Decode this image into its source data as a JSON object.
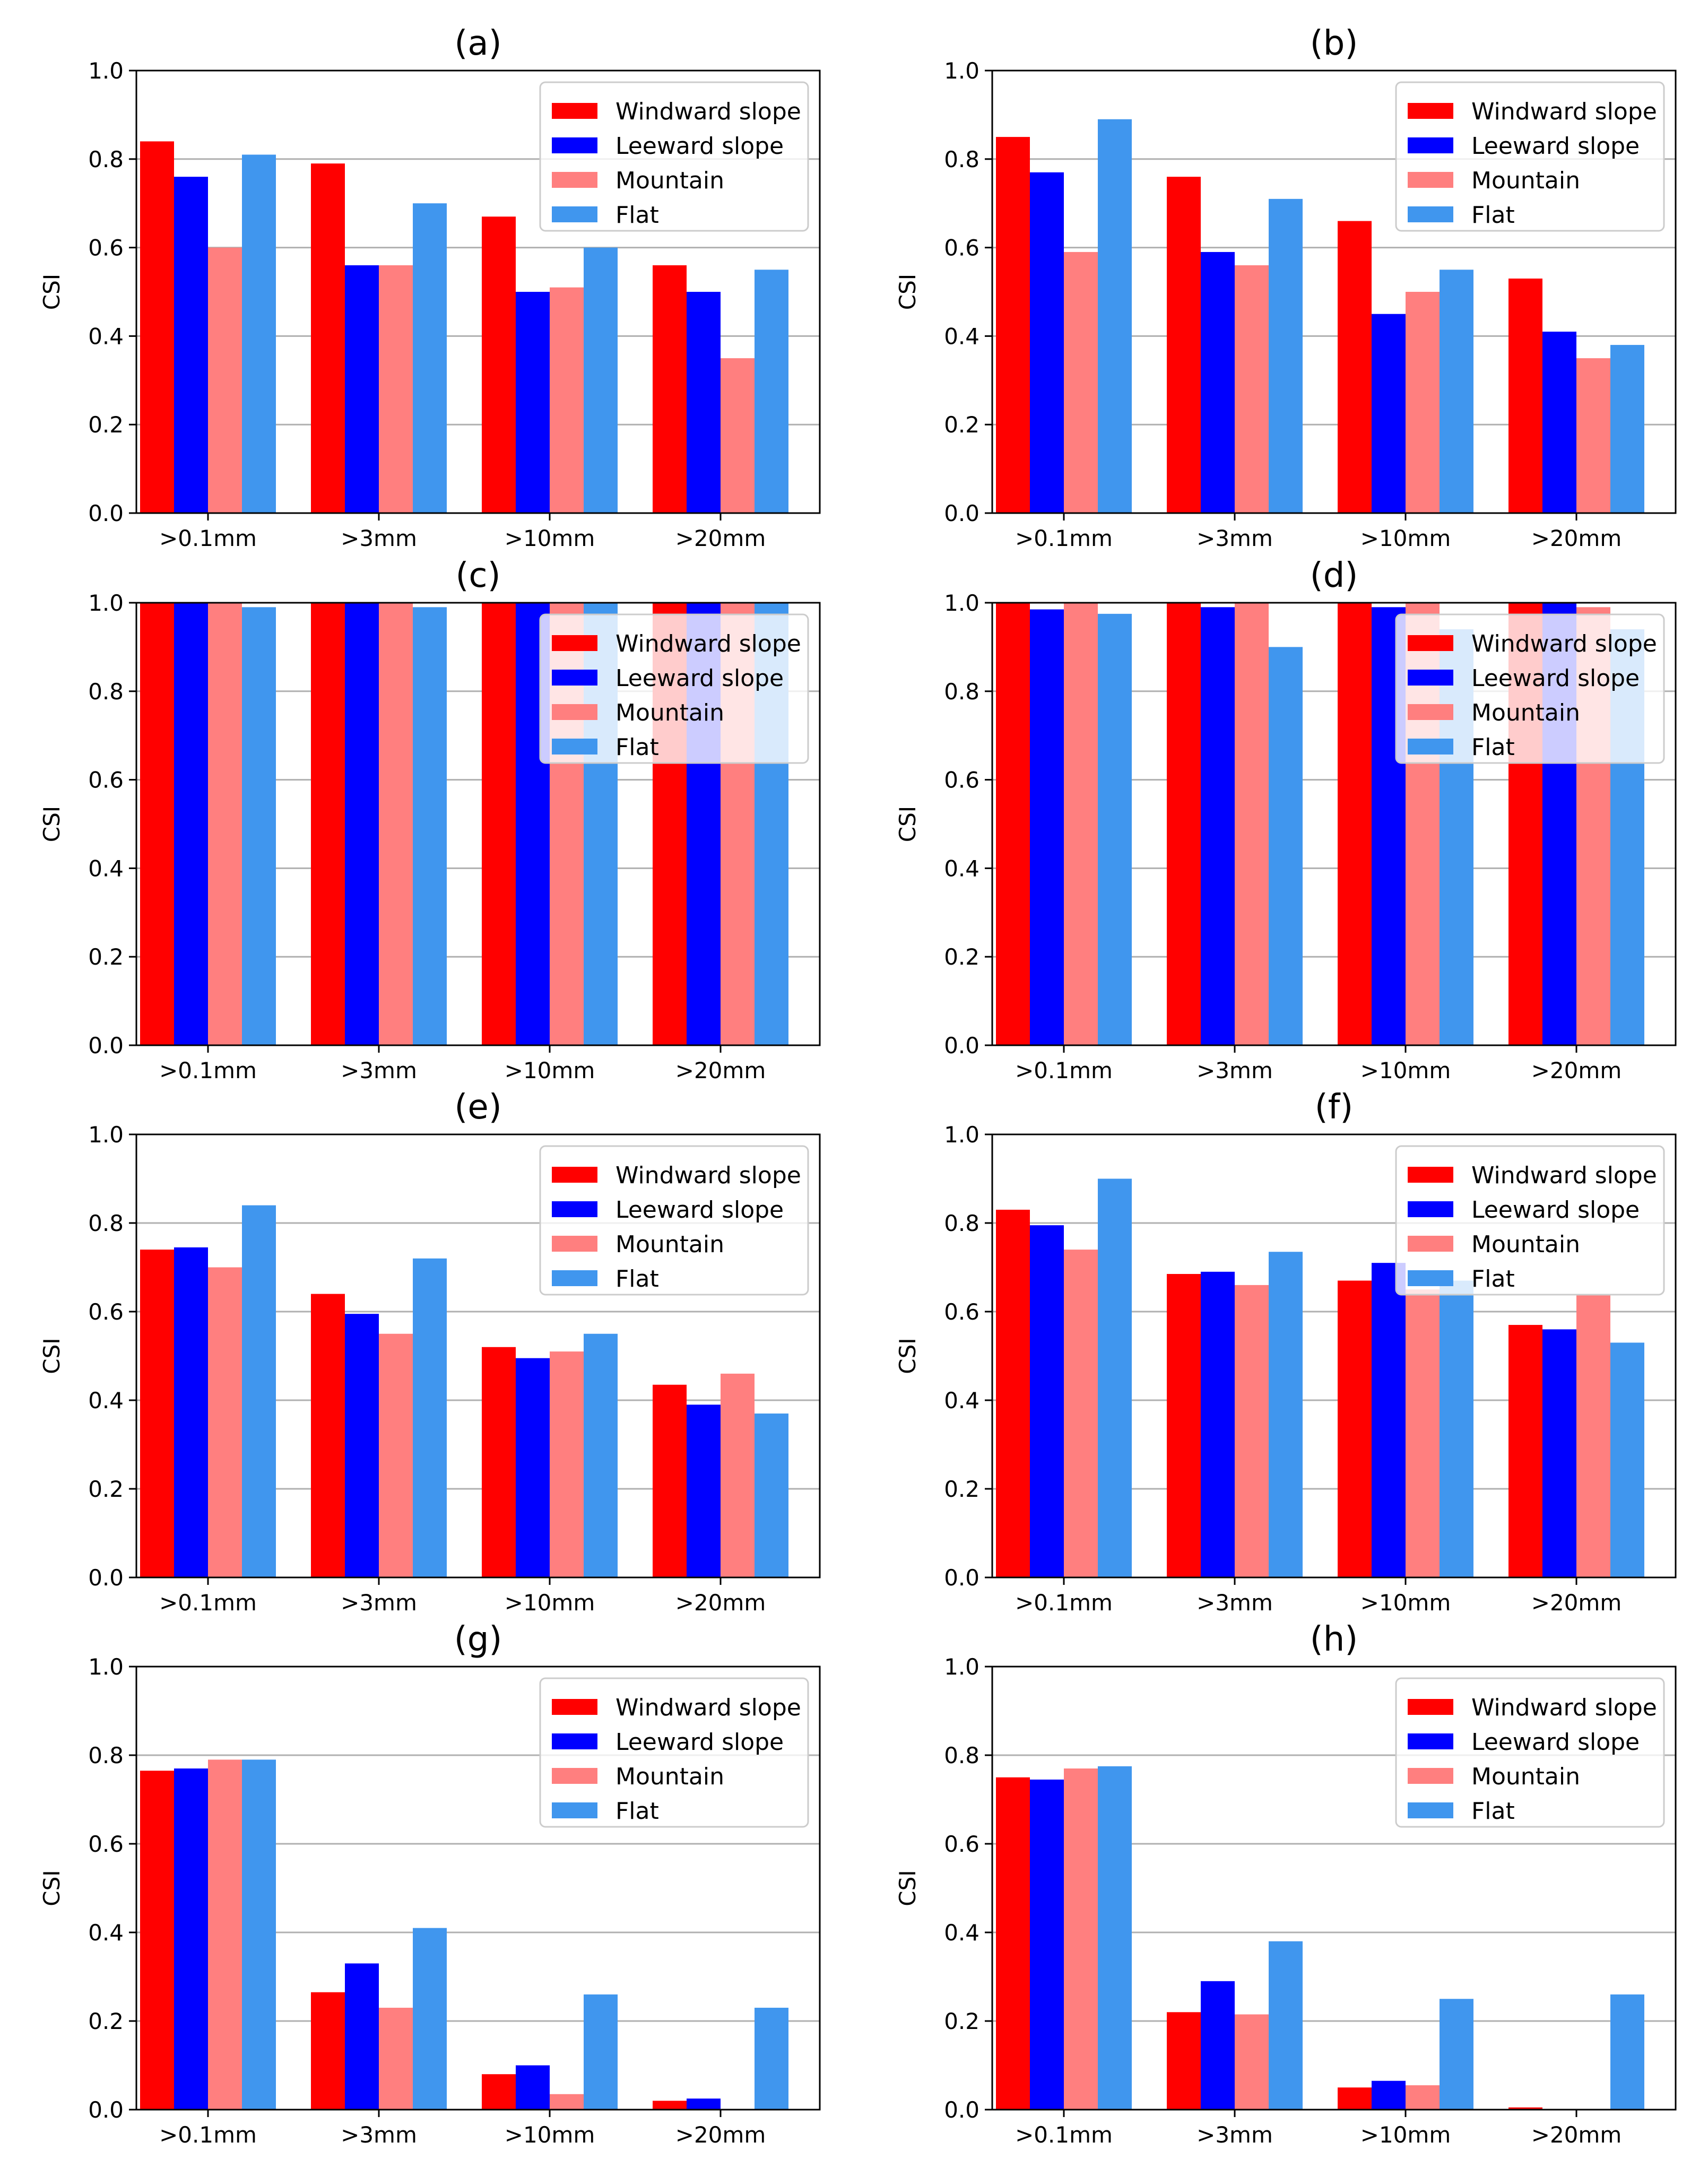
{
  "colors": {
    "Windward slope": "#ff0000",
    "Leeward slope": "#0000ff",
    "Mountain": "#ff7f7f",
    "Flat": "#4096ee"
  },
  "chart_data": [
    {
      "type": "bar",
      "title": "(a)",
      "ylabel": "CSI",
      "ylim": [
        0,
        1
      ],
      "yticks": [
        "0.0",
        "0.2",
        "0.4",
        "0.6",
        "0.8",
        "1.0"
      ],
      "categories": [
        ">0.1mm",
        ">3mm",
        ">10mm",
        ">20mm"
      ],
      "legend": "top-right",
      "grid": "y",
      "series": [
        {
          "name": "Windward slope",
          "values": [
            0.84,
            0.79,
            0.67,
            0.56
          ]
        },
        {
          "name": "Leeward slope",
          "values": [
            0.76,
            0.56,
            0.5,
            0.5
          ]
        },
        {
          "name": "Mountain",
          "values": [
            0.6,
            0.56,
            0.51,
            0.35
          ]
        },
        {
          "name": "Flat",
          "values": [
            0.81,
            0.7,
            0.6,
            0.55
          ]
        }
      ]
    },
    {
      "type": "bar",
      "title": "(b)",
      "ylabel": "CSI",
      "ylim": [
        0,
        1
      ],
      "yticks": [
        "0.0",
        "0.2",
        "0.4",
        "0.6",
        "0.8",
        "1.0"
      ],
      "categories": [
        ">0.1mm",
        ">3mm",
        ">10mm",
        ">20mm"
      ],
      "legend": "top-right",
      "grid": "y",
      "series": [
        {
          "name": "Windward slope",
          "values": [
            0.85,
            0.76,
            0.66,
            0.53
          ]
        },
        {
          "name": "Leeward slope",
          "values": [
            0.77,
            0.59,
            0.45,
            0.41
          ]
        },
        {
          "name": "Mountain",
          "values": [
            0.59,
            0.56,
            0.5,
            0.35
          ]
        },
        {
          "name": "Flat",
          "values": [
            0.89,
            0.71,
            0.55,
            0.38
          ]
        }
      ]
    },
    {
      "type": "bar",
      "title": "(c)",
      "ylabel": "CSI",
      "ylim": [
        0,
        1
      ],
      "yticks": [
        "0.0",
        "0.2",
        "0.4",
        "0.6",
        "0.8",
        "1.0"
      ],
      "categories": [
        ">0.1mm",
        ">3mm",
        ">10mm",
        ">20mm"
      ],
      "legend": "top-right",
      "grid": "y",
      "series": [
        {
          "name": "Windward slope",
          "values": [
            1.0,
            1.0,
            1.0,
            1.0
          ]
        },
        {
          "name": "Leeward slope",
          "values": [
            1.0,
            1.0,
            1.0,
            1.0
          ]
        },
        {
          "name": "Mountain",
          "values": [
            1.0,
            1.0,
            1.0,
            1.0
          ]
        },
        {
          "name": "Flat",
          "values": [
            0.99,
            0.99,
            1.0,
            1.0
          ]
        }
      ]
    },
    {
      "type": "bar",
      "title": "(d)",
      "ylabel": "CSI",
      "ylim": [
        0,
        1
      ],
      "yticks": [
        "0.0",
        "0.2",
        "0.4",
        "0.6",
        "0.8",
        "1.0"
      ],
      "categories": [
        ">0.1mm",
        ">3mm",
        ">10mm",
        ">20mm"
      ],
      "legend": "top-right",
      "grid": "y",
      "series": [
        {
          "name": "Windward slope",
          "values": [
            1.0,
            1.0,
            1.0,
            1.0
          ]
        },
        {
          "name": "Leeward slope",
          "values": [
            0.985,
            0.99,
            0.99,
            1.0
          ]
        },
        {
          "name": "Mountain",
          "values": [
            1.0,
            1.0,
            1.0,
            0.99
          ]
        },
        {
          "name": "Flat",
          "values": [
            0.975,
            0.9,
            0.94,
            0.94
          ]
        }
      ]
    },
    {
      "type": "bar",
      "title": "(e)",
      "ylabel": "CSI",
      "ylim": [
        0,
        1
      ],
      "yticks": [
        "0.0",
        "0.2",
        "0.4",
        "0.6",
        "0.8",
        "1.0"
      ],
      "categories": [
        ">0.1mm",
        ">3mm",
        ">10mm",
        ">20mm"
      ],
      "legend": "top-right",
      "grid": "y",
      "series": [
        {
          "name": "Windward slope",
          "values": [
            0.74,
            0.64,
            0.52,
            0.435
          ]
        },
        {
          "name": "Leeward slope",
          "values": [
            0.745,
            0.595,
            0.495,
            0.39
          ]
        },
        {
          "name": "Mountain",
          "values": [
            0.7,
            0.55,
            0.51,
            0.46
          ]
        },
        {
          "name": "Flat",
          "values": [
            0.84,
            0.72,
            0.55,
            0.37
          ]
        }
      ]
    },
    {
      "type": "bar",
      "title": "(f)",
      "ylabel": "CSI",
      "ylim": [
        0,
        1
      ],
      "yticks": [
        "0.0",
        "0.2",
        "0.4",
        "0.6",
        "0.8",
        "1.0"
      ],
      "categories": [
        ">0.1mm",
        ">3mm",
        ">10mm",
        ">20mm"
      ],
      "legend": "top-right",
      "grid": "y",
      "series": [
        {
          "name": "Windward slope",
          "values": [
            0.83,
            0.685,
            0.67,
            0.57
          ]
        },
        {
          "name": "Leeward slope",
          "values": [
            0.795,
            0.69,
            0.71,
            0.56
          ]
        },
        {
          "name": "Mountain",
          "values": [
            0.74,
            0.66,
            0.65,
            0.64
          ]
        },
        {
          "name": "Flat",
          "values": [
            0.9,
            0.735,
            0.67,
            0.53
          ]
        }
      ]
    },
    {
      "type": "bar",
      "title": "(g)",
      "ylabel": "CSI",
      "ylim": [
        0,
        1
      ],
      "yticks": [
        "0.0",
        "0.2",
        "0.4",
        "0.6",
        "0.8",
        "1.0"
      ],
      "categories": [
        ">0.1mm",
        ">3mm",
        ">10mm",
        ">20mm"
      ],
      "legend": "top-right",
      "grid": "y",
      "series": [
        {
          "name": "Windward slope",
          "values": [
            0.765,
            0.265,
            0.08,
            0.02
          ]
        },
        {
          "name": "Leeward slope",
          "values": [
            0.77,
            0.33,
            0.1,
            0.025
          ]
        },
        {
          "name": "Mountain",
          "values": [
            0.79,
            0.23,
            0.035,
            0.0
          ]
        },
        {
          "name": "Flat",
          "values": [
            0.79,
            0.41,
            0.26,
            0.23
          ]
        }
      ]
    },
    {
      "type": "bar",
      "title": "(h)",
      "ylabel": "CSI",
      "ylim": [
        0,
        1
      ],
      "yticks": [
        "0.0",
        "0.2",
        "0.4",
        "0.6",
        "0.8",
        "1.0"
      ],
      "categories": [
        ">0.1mm",
        ">3mm",
        ">10mm",
        ">20mm"
      ],
      "legend": "top-right",
      "grid": "y",
      "series": [
        {
          "name": "Windward slope",
          "values": [
            0.75,
            0.22,
            0.05,
            0.005
          ]
        },
        {
          "name": "Leeward slope",
          "values": [
            0.745,
            0.29,
            0.065,
            0.0
          ]
        },
        {
          "name": "Mountain",
          "values": [
            0.77,
            0.215,
            0.055,
            0.0
          ]
        },
        {
          "name": "Flat",
          "values": [
            0.775,
            0.38,
            0.25,
            0.26
          ]
        }
      ]
    }
  ]
}
